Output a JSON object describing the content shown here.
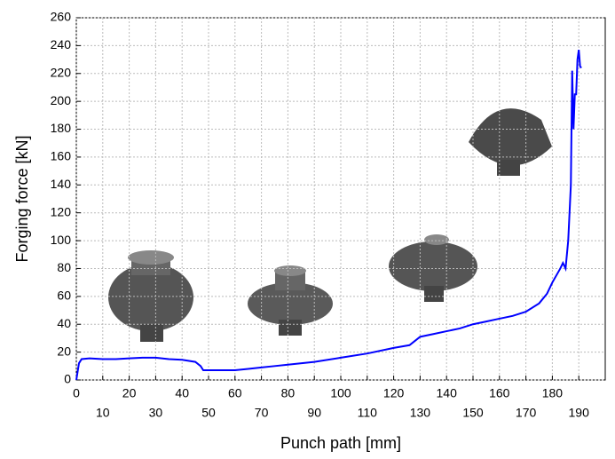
{
  "chart_data": {
    "type": "line",
    "x_label": "Punch path [mm]",
    "y_label": "Forging force [kN]",
    "x": [
      0,
      1,
      2,
      5,
      10,
      15,
      20,
      25,
      30,
      35,
      40,
      45,
      47,
      48,
      50,
      55,
      60,
      65,
      70,
      75,
      80,
      90,
      100,
      110,
      120,
      126,
      128,
      130,
      135,
      140,
      145,
      150,
      155,
      160,
      165,
      170,
      175,
      178,
      180,
      183,
      184,
      185,
      186,
      187,
      187.5,
      188,
      188.5,
      189,
      189.5,
      190,
      190.5,
      191
    ],
    "series": [
      {
        "name": "Forging force",
        "color": "#0000ff",
        "values": [
          0,
          12,
          15,
          15.5,
          15,
          15,
          15.5,
          16,
          16,
          15,
          14.5,
          13,
          10,
          7,
          7,
          7,
          7,
          8,
          9,
          10,
          11,
          13,
          16,
          19,
          23,
          25,
          28,
          31,
          33,
          35,
          37,
          40,
          42,
          44,
          46,
          49,
          55,
          62,
          70,
          80,
          84,
          80,
          100,
          140,
          222,
          180,
          205,
          205,
          230,
          237,
          225,
          224
        ]
      }
    ],
    "xlim": [
      0,
      200
    ],
    "xticks": [
      0,
      10,
      20,
      30,
      40,
      50,
      60,
      70,
      80,
      90,
      100,
      110,
      120,
      130,
      140,
      150,
      160,
      170,
      180,
      190
    ],
    "ylim": [
      0,
      260
    ],
    "yticks": [
      0,
      20,
      40,
      60,
      80,
      100,
      120,
      140,
      160,
      180,
      200,
      220,
      240,
      260
    ],
    "grid": true
  }
}
